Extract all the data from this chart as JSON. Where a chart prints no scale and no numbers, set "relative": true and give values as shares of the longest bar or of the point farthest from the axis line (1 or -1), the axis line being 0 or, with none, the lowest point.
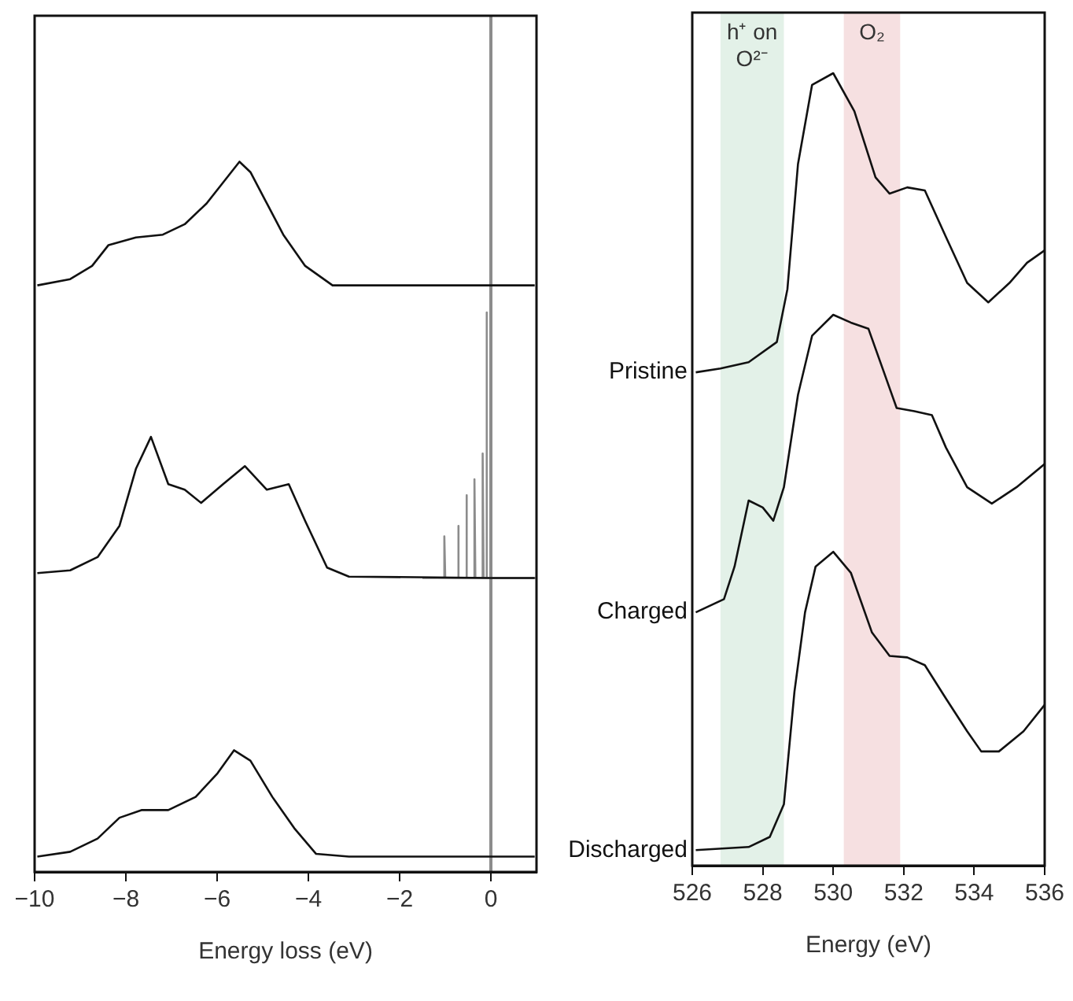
{
  "chart_data": [
    {
      "type": "line",
      "relative": true,
      "xlabel": "Energy loss (eV)",
      "xlim": [
        -10,
        1
      ],
      "xticks": [
        -10,
        -8,
        -6,
        -4,
        -2,
        0
      ],
      "marker": "none",
      "ref_lines": [
        {
          "axis": "x",
          "value": 0,
          "color": "#8c8c8c"
        }
      ],
      "series": [
        {
          "color": "#111111",
          "x": [
            -9.94,
            -9.22,
            -8.74,
            -8.38,
            -7.78,
            -7.19,
            -6.71,
            -6.23,
            -5.87,
            -5.51,
            -5.27,
            -4.91,
            -4.55,
            -4.07,
            -3.47,
            0.96
          ],
          "values": [
            0.822,
            0.831,
            0.85,
            0.88,
            0.891,
            0.895,
            0.91,
            0.94,
            0.97,
            1,
            0.985,
            0.94,
            0.895,
            0.85,
            0.822,
            0.822
          ]
        },
        {
          "color": "#111111",
          "x": [
            -9.94,
            -9.22,
            -8.62,
            -8.14,
            -7.78,
            -7.45,
            -7.07,
            -6.71,
            -6.35,
            -5.87,
            -5.39,
            -4.91,
            -4.43,
            -4.07,
            -3.59,
            -3.11,
            0,
            0.96
          ],
          "values": [
            0.408,
            0.412,
            0.431,
            0.476,
            0.558,
            0.604,
            0.536,
            0.528,
            0.509,
            0.536,
            0.562,
            0.528,
            0.536,
            0.483,
            0.416,
            0.403,
            0.401,
            0.401
          ]
        },
        {
          "color": "#8c8c8c",
          "x": [
            -1.5,
            -1.02,
            -1.02,
            -1,
            -0.72,
            -0.72,
            -0.7,
            -0.54,
            -0.54,
            -0.52,
            -0.36,
            -0.36,
            -0.34,
            -0.18,
            -0.18,
            -0.16,
            -0.1,
            -0.1,
            -0.08,
            1
          ],
          "values": [
            0.401,
            0.401,
            0.461,
            0.401,
            0.401,
            0.476,
            0.401,
            0.401,
            0.52,
            0.401,
            0.401,
            0.543,
            0.401,
            0.401,
            0.58,
            0.401,
            0.401,
            0.783,
            0.401,
            0.401
          ]
        },
        {
          "color": "#111111",
          "x": [
            -9.94,
            -9.22,
            -8.62,
            -8.14,
            -7.66,
            -7.07,
            -6.47,
            -5.99,
            -5.63,
            -5.27,
            -4.79,
            -4.31,
            -3.83,
            -3.11,
            0.96
          ],
          "values": [
            0,
            0.007,
            0.026,
            0.056,
            0.067,
            0.067,
            0.086,
            0.12,
            0.153,
            0.138,
            0.086,
            0.041,
            0.004,
            0,
            0
          ]
        }
      ]
    },
    {
      "type": "line",
      "relative": true,
      "xlabel": "Energy (eV)",
      "xlim": [
        526,
        536
      ],
      "xticks": [
        526,
        528,
        530,
        532,
        534,
        536
      ],
      "marker": "none",
      "bands": [
        {
          "axis": "x",
          "from": 526.8,
          "to": 528.6,
          "label": "h⁺ on O²⁻",
          "color": "#e3f1e8"
        },
        {
          "axis": "x",
          "from": 530.3,
          "to": 531.9,
          "label": "O₂",
          "color": "#f6e0e1"
        }
      ],
      "series": [
        {
          "name": "Pristine",
          "color": "#111111",
          "x": [
            526.1,
            526.8,
            527.6,
            528.4,
            528.7,
            529,
            529.4,
            530,
            530.6,
            531.2,
            531.6,
            532.1,
            532.6,
            533.2,
            533.8,
            534.4,
            535,
            535.5,
            536
          ],
          "values": [
            0.615,
            0.62,
            0.628,
            0.654,
            0.722,
            0.883,
            0.985,
            1,
            0.951,
            0.866,
            0.845,
            0.853,
            0.849,
            0.789,
            0.73,
            0.705,
            0.73,
            0.756,
            0.772
          ]
        },
        {
          "name": "Charged",
          "color": "#111111",
          "x": [
            526.1,
            526.9,
            527.2,
            527.6,
            528,
            528.3,
            528.6,
            529,
            529.4,
            530,
            530.5,
            531,
            531.4,
            531.8,
            532.3,
            532.8,
            533.2,
            533.8,
            534.5,
            535.2,
            536
          ],
          "values": [
            0.306,
            0.323,
            0.365,
            0.45,
            0.441,
            0.424,
            0.467,
            0.586,
            0.662,
            0.689,
            0.679,
            0.671,
            0.62,
            0.569,
            0.565,
            0.56,
            0.518,
            0.467,
            0.446,
            0.467,
            0.497
          ]
        },
        {
          "name": "Discharged",
          "color": "#111111",
          "x": [
            526.1,
            527.6,
            528.2,
            528.6,
            528.9,
            529.2,
            529.5,
            530,
            530.5,
            531.1,
            531.6,
            532.1,
            532.6,
            533.2,
            533.8,
            534.2,
            534.7,
            535.4,
            536
          ],
          "values": [
            0,
            0.004,
            0.017,
            0.059,
            0.204,
            0.306,
            0.365,
            0.384,
            0.357,
            0.28,
            0.25,
            0.248,
            0.238,
            0.195,
            0.153,
            0.127,
            0.127,
            0.153,
            0.187
          ]
        }
      ]
    }
  ]
}
